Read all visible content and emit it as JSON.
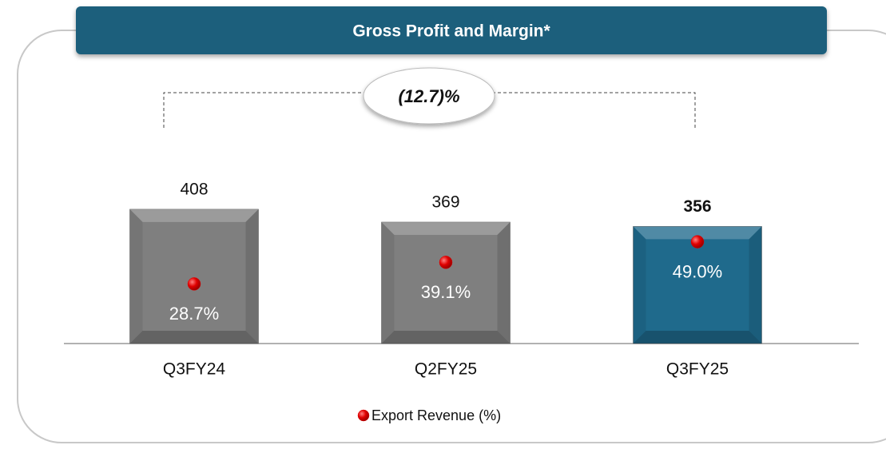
{
  "chart_data": {
    "type": "bar",
    "title": "Gross Profit and Margin*",
    "annotation": "(12.7)%",
    "categories": [
      "Q3FY24",
      "Q2FY25",
      "Q3FY25"
    ],
    "series": [
      {
        "values": [
          408,
          369,
          356
        ],
        "colors": [
          "#7f7f7f",
          "#7f7f7f",
          "#1f6a8c"
        ]
      },
      {
        "name": "Export Revenue (%)",
        "type": "scatter",
        "axis": "y2",
        "color": "#e00000",
        "values": [
          28.7,
          39.1,
          49.0
        ],
        "value_labels": [
          "28.7%",
          "39.1%",
          "49.0%"
        ]
      }
    ]
  }
}
